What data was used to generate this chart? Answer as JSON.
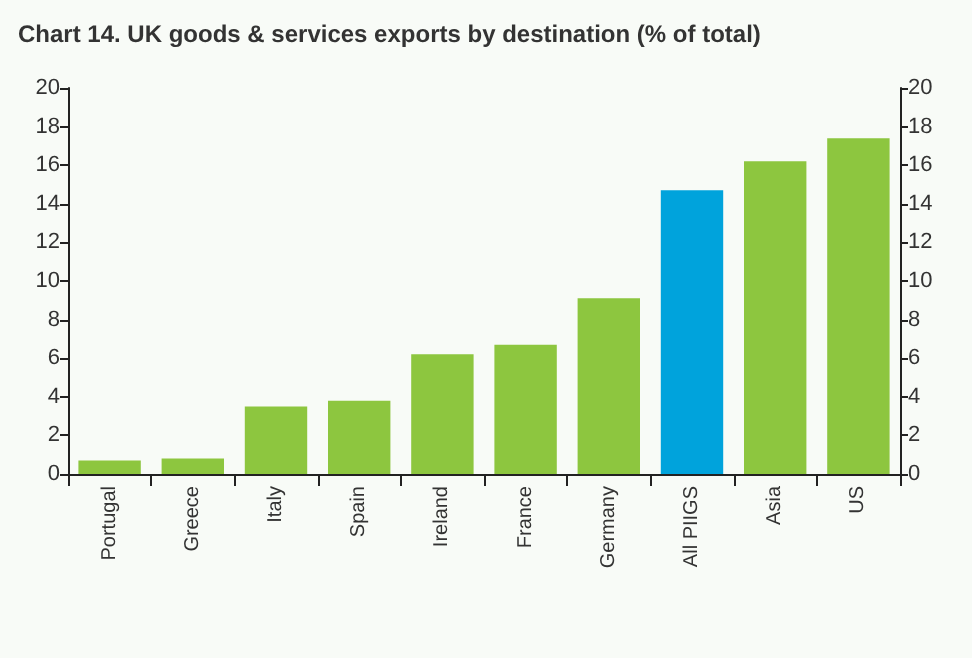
{
  "chart_data": {
    "type": "bar",
    "title": "Chart 14. UK goods & services exports by destination (% of total)",
    "categories": [
      "Portugal",
      "Greece",
      "Italy",
      "Spain",
      "Ireland",
      "France",
      "Germany",
      "All PIIGS",
      "Asia",
      "US"
    ],
    "values": [
      0.7,
      0.8,
      3.5,
      3.8,
      6.2,
      6.7,
      9.1,
      14.7,
      16.2,
      17.4
    ],
    "colors": [
      "#8dc63f",
      "#8dc63f",
      "#8dc63f",
      "#8dc63f",
      "#8dc63f",
      "#8dc63f",
      "#8dc63f",
      "#00a3dc",
      "#8dc63f",
      "#8dc63f"
    ],
    "ylim": [
      0,
      20
    ],
    "yticks": [
      0,
      2,
      4,
      6,
      8,
      10,
      12,
      14,
      16,
      18,
      20
    ],
    "y2lim": [
      0,
      20
    ],
    "y2ticks": [
      0,
      2,
      4,
      6,
      8,
      10,
      12,
      14,
      16,
      18,
      20
    ],
    "grid": false
  }
}
